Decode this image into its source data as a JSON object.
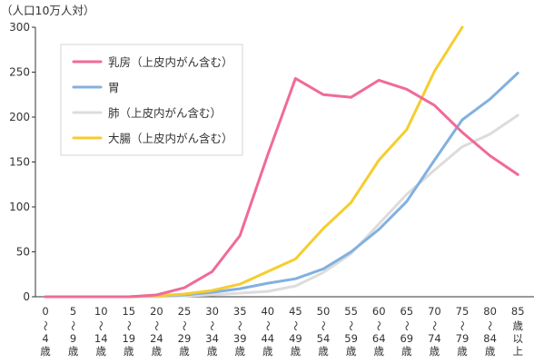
{
  "chart_data": {
    "type": "line",
    "unit_label": "（人口10万人対）",
    "ylim": [
      0,
      300
    ],
    "y_ticks": [
      "0",
      "50",
      "100",
      "150",
      "200",
      "250",
      "300"
    ],
    "grid": false,
    "legend_position": "top-left",
    "categories": [
      [
        "0",
        "〜",
        "4",
        "歳"
      ],
      [
        "5",
        "〜",
        "9",
        "歳"
      ],
      [
        "10",
        "〜",
        "14",
        "歳"
      ],
      [
        "15",
        "〜",
        "19",
        "歳"
      ],
      [
        "20",
        "〜",
        "24",
        "歳"
      ],
      [
        "25",
        "〜",
        "29",
        "歳"
      ],
      [
        "30",
        "〜",
        "34",
        "歳"
      ],
      [
        "35",
        "〜",
        "39",
        "歳"
      ],
      [
        "40",
        "〜",
        "44",
        "歳"
      ],
      [
        "45",
        "〜",
        "49",
        "歳"
      ],
      [
        "50",
        "〜",
        "54",
        "歳"
      ],
      [
        "55",
        "〜",
        "59",
        "歳"
      ],
      [
        "60",
        "〜",
        "64",
        "歳"
      ],
      [
        "65",
        "〜",
        "69",
        "歳"
      ],
      [
        "70",
        "〜",
        "74",
        "歳"
      ],
      [
        "75",
        "〜",
        "79",
        "歳"
      ],
      [
        "80",
        "〜",
        "84",
        "歳"
      ],
      [
        "85",
        "歳",
        "以",
        "上"
      ]
    ],
    "series": [
      {
        "name": "乳房（上皮内がん含む）",
        "color": "#f06a9a",
        "values": [
          0,
          0,
          0,
          0,
          2,
          10,
          28,
          68,
          158,
          243,
          225,
          222,
          241,
          231,
          213,
          183,
          157,
          136
        ]
      },
      {
        "name": "胃",
        "color": "#82b0e0",
        "values": [
          0,
          0,
          0,
          0,
          1,
          2,
          5,
          9,
          15,
          20,
          31,
          50,
          75,
          106,
          152,
          197,
          220,
          249
        ]
      },
      {
        "name": "肺（上皮内がん含む）",
        "color": "#dcdcdc",
        "values": [
          0,
          0,
          0,
          0,
          0,
          1,
          2,
          4,
          6,
          12,
          27,
          48,
          81,
          114,
          141,
          167,
          181,
          202
        ]
      },
      {
        "name": "大腸（上皮内がん含む）",
        "color": "#f6cd2e",
        "values": [
          0,
          0,
          0,
          0,
          1,
          3,
          7,
          14,
          28,
          42,
          76,
          105,
          152,
          186,
          251,
          300,
          null,
          null
        ]
      }
    ]
  }
}
